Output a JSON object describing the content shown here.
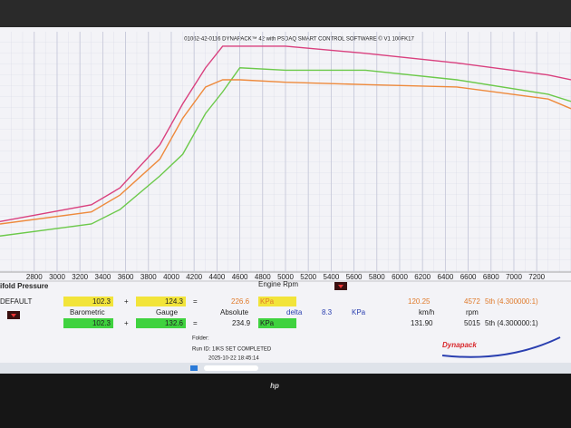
{
  "chart_data": {
    "type": "line",
    "title": "01062-42-0116 DYNAPACK™ 42 with PSDAQ SMART CONTROL SOFTWARE © V1 100FK17",
    "x_label": "Engine Rpm",
    "x": [
      2500,
      3300,
      3550,
      3900,
      4100,
      4300,
      4450,
      4600,
      5000,
      5700,
      6500,
      7300,
      7500
    ],
    "series": [
      {
        "color": "#d9407e",
        "values": [
          21,
          28,
          35,
          53,
          70,
          85,
          94,
          94,
          94,
          91,
          87,
          82,
          80
        ]
      },
      {
        "color": "#6cc94a",
        "values": [
          15,
          20,
          26,
          40,
          49,
          66,
          75,
          85,
          84,
          84,
          80,
          74,
          71
        ]
      },
      {
        "color": "#ee8a3c",
        "values": [
          20,
          25,
          32,
          47,
          64,
          77,
          80,
          80,
          79,
          78,
          77,
          72,
          68
        ]
      }
    ],
    "xlim": [
      2500,
      7500
    ],
    "xticks": [
      2800,
      3000,
      3200,
      3400,
      3600,
      3800,
      4000,
      4200,
      4400,
      4600,
      4800,
      5000,
      5200,
      5400,
      5600,
      5800,
      6000,
      6200,
      6400,
      6600,
      6800,
      7000,
      7200
    ],
    "ylim": [
      0,
      100
    ],
    "grid": true
  },
  "panel": {
    "section_title": "ifold Pressure",
    "profile": "DEFAULT",
    "row1": {
      "barometric": "102.3",
      "plus": "+",
      "gauge": "124.3",
      "equals": "=",
      "absolute": "226.6",
      "unit": "KPa",
      "speed": "120.25",
      "rpm": "4572",
      "gear": "5th (4.300000:1)"
    },
    "labels": {
      "barometric": "Barometric",
      "gauge": "Gauge",
      "absolute": "Absolute",
      "delta": "delta",
      "delta_value": "8.3",
      "delta_unit": "KPa",
      "speed_unit": "km/h",
      "rpm_unit": "rpm"
    },
    "row2": {
      "barometric": "102.3",
      "plus": "+",
      "gauge": "132.6",
      "equals": "=",
      "absolute": "234.9",
      "unit": "KPa",
      "speed": "131.90",
      "rpm": "5015",
      "gear": "5th (4.300000:1)"
    },
    "folder": "Folder:",
    "run_id": "Run ID: 1IKS SET COMPLETED",
    "timestamp": "2025-10-22 18:45:14",
    "logo": "Dynapack"
  },
  "bezel": {
    "brand": "hp"
  }
}
